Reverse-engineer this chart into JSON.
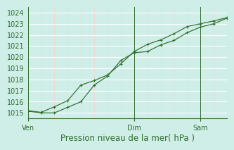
{
  "bg_color": "#d0eee8",
  "grid_major_color": "#ffffff",
  "grid_minor_color": "#f5d0d0",
  "line_color": "#2d6e2d",
  "xlabel": "Pression niveau de la mer( hPa )",
  "xlabel_fontsize": 8.5,
  "tick_label_fontsize": 7,
  "ylim": [
    1014.5,
    1024.5
  ],
  "yticks": [
    1015,
    1016,
    1017,
    1018,
    1019,
    1020,
    1021,
    1022,
    1023,
    1024
  ],
  "xtick_labels": [
    "Ven",
    "Dim",
    "Sam"
  ],
  "xtick_positions": [
    0,
    8,
    13
  ],
  "xmin": 0,
  "xmax": 15,
  "vline_positions": [
    0,
    8,
    13
  ],
  "series1_x": [
    0,
    1,
    2,
    3,
    4,
    5,
    6,
    7,
    8,
    9,
    10,
    11,
    12,
    13,
    14,
    15
  ],
  "series1_y": [
    1015.2,
    1015.05,
    1015.55,
    1016.1,
    1017.5,
    1017.9,
    1018.4,
    1019.4,
    1020.5,
    1021.15,
    1021.55,
    1022.1,
    1022.75,
    1023.0,
    1023.25,
    1023.55
  ],
  "series2_x": [
    0,
    1,
    2,
    3,
    4,
    5,
    6,
    7,
    8,
    9,
    10,
    11,
    12,
    13,
    14,
    15
  ],
  "series2_y": [
    1015.15,
    1015.0,
    1015.0,
    1015.5,
    1016.0,
    1017.5,
    1018.3,
    1019.7,
    1020.4,
    1020.5,
    1021.1,
    1021.5,
    1022.2,
    1022.7,
    1023.0,
    1023.5
  ]
}
